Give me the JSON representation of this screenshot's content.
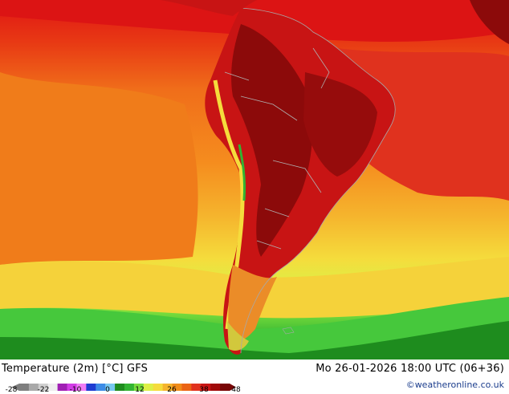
{
  "map": {
    "legend_title": "Temperature (2m) [°C] GFS",
    "valid_time": "Mo 26-01-2026 18:00 UTC (06+36)",
    "credit": "©weatheronline.co.uk",
    "colorbar": {
      "ticks": [
        "-28",
        "-22",
        "-10",
        "0",
        "12",
        "26",
        "38",
        "48"
      ],
      "colors": [
        "#7f7f7f",
        "#a9a9a9",
        "#cfcfcf",
        "#eeeeee",
        "#a020b4",
        "#d23ce6",
        "#f07cf5",
        "#1e3cd2",
        "#3c8ce6",
        "#78c8f0",
        "#1e8c1e",
        "#32b432",
        "#78dc3c",
        "#dcf046",
        "#f5dc3c",
        "#f5b42d",
        "#f08c19",
        "#eb6414",
        "#e1321e",
        "#c81414",
        "#a00a0a",
        "#780505"
      ]
    }
  }
}
